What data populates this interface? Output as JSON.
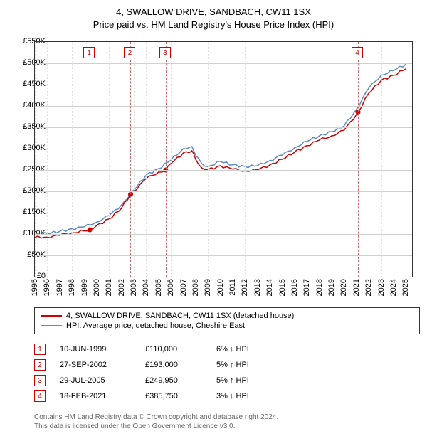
{
  "title_line1": "4, SWALLOW DRIVE, SANDBACH, CW11 1SX",
  "title_line2": "Price paid vs. HM Land Registry's House Price Index (HPI)",
  "chart": {
    "type": "line",
    "xmin": 1995,
    "xmax": 2025.5,
    "ymin": 0,
    "ymax": 550000,
    "ytick_step": 50000,
    "ytick_labels": [
      "£0",
      "£50K",
      "£100K",
      "£150K",
      "£200K",
      "£250K",
      "£300K",
      "£350K",
      "£400K",
      "£450K",
      "£500K",
      "£550K"
    ],
    "xticks": [
      1995,
      1996,
      1997,
      1998,
      1999,
      2000,
      2001,
      2002,
      2003,
      2004,
      2005,
      2006,
      2007,
      2008,
      2009,
      2010,
      2011,
      2012,
      2013,
      2014,
      2015,
      2016,
      2017,
      2018,
      2019,
      2020,
      2021,
      2022,
      2023,
      2024,
      2025
    ],
    "grid_color": "#d0d0d0",
    "background_color": "#ffffff",
    "series": [
      {
        "name": "property",
        "color": "#cc0000",
        "width": 1.5,
        "points": [
          [
            1995,
            92000
          ],
          [
            1996,
            93000
          ],
          [
            1997,
            97000
          ],
          [
            1998,
            103000
          ],
          [
            1999,
            107000
          ],
          [
            1999.44,
            110000
          ],
          [
            2000,
            120000
          ],
          [
            2001,
            135000
          ],
          [
            2002,
            160000
          ],
          [
            2002.74,
            193000
          ],
          [
            2003,
            200000
          ],
          [
            2004,
            230000
          ],
          [
            2005,
            245000
          ],
          [
            2005.58,
            249950
          ],
          [
            2006,
            265000
          ],
          [
            2007,
            290000
          ],
          [
            2007.7,
            295000
          ],
          [
            2008,
            275000
          ],
          [
            2008.5,
            255000
          ],
          [
            2009,
            250000
          ],
          [
            2010,
            260000
          ],
          [
            2011,
            252000
          ],
          [
            2012,
            248000
          ],
          [
            2013,
            250000
          ],
          [
            2014,
            262000
          ],
          [
            2015,
            275000
          ],
          [
            2016,
            292000
          ],
          [
            2017,
            307000
          ],
          [
            2018,
            320000
          ],
          [
            2019,
            330000
          ],
          [
            2020,
            343000
          ],
          [
            2021,
            380000
          ],
          [
            2021.13,
            385750
          ],
          [
            2022,
            430000
          ],
          [
            2023,
            460000
          ],
          [
            2024,
            472000
          ],
          [
            2025,
            487000
          ]
        ]
      },
      {
        "name": "hpi",
        "color": "#5b8ac6",
        "width": 1.5,
        "points": [
          [
            1995,
            100000
          ],
          [
            1996,
            101000
          ],
          [
            1997,
            106000
          ],
          [
            1998,
            112000
          ],
          [
            1999,
            117000
          ],
          [
            2000,
            128000
          ],
          [
            2001,
            143000
          ],
          [
            2002,
            168000
          ],
          [
            2003,
            203000
          ],
          [
            2004,
            238000
          ],
          [
            2005,
            253000
          ],
          [
            2006,
            273000
          ],
          [
            2007,
            300000
          ],
          [
            2007.7,
            305000
          ],
          [
            2008,
            285000
          ],
          [
            2008.5,
            265000
          ],
          [
            2009,
            258000
          ],
          [
            2010,
            270000
          ],
          [
            2011,
            262000
          ],
          [
            2012,
            258000
          ],
          [
            2013,
            260000
          ],
          [
            2014,
            272000
          ],
          [
            2015,
            285000
          ],
          [
            2016,
            302000
          ],
          [
            2017,
            317000
          ],
          [
            2018,
            330000
          ],
          [
            2019,
            340000
          ],
          [
            2020,
            353000
          ],
          [
            2021,
            392000
          ],
          [
            2022,
            442000
          ],
          [
            2023,
            472000
          ],
          [
            2024,
            483000
          ],
          [
            2025,
            498000
          ]
        ]
      }
    ],
    "markers": [
      {
        "num": "1",
        "x": 1999.44,
        "y": 110000
      },
      {
        "num": "2",
        "x": 2002.74,
        "y": 193000
      },
      {
        "num": "3",
        "x": 2005.58,
        "y": 249950
      },
      {
        "num": "4",
        "x": 2021.13,
        "y": 385750
      }
    ]
  },
  "legend": [
    {
      "color": "#cc0000",
      "label": "4, SWALLOW DRIVE, SANDBACH, CW11 1SX (detached house)"
    },
    {
      "color": "#5b8ac6",
      "label": "HPI: Average price, detached house, Cheshire East"
    }
  ],
  "events": [
    {
      "num": "1",
      "date": "10-JUN-1999",
      "price": "£110,000",
      "diff": "6% ↓ HPI"
    },
    {
      "num": "2",
      "date": "27-SEP-2002",
      "price": "£193,000",
      "diff": "5% ↑ HPI"
    },
    {
      "num": "3",
      "date": "29-JUL-2005",
      "price": "£249,950",
      "diff": "5% ↑ HPI"
    },
    {
      "num": "4",
      "date": "18-FEB-2021",
      "price": "£385,750",
      "diff": "3% ↓ HPI"
    }
  ],
  "footer_line1": "Contains HM Land Registry data © Crown copyright and database right 2024.",
  "footer_line2": "This data is licensed under the Open Government Licence v3.0."
}
